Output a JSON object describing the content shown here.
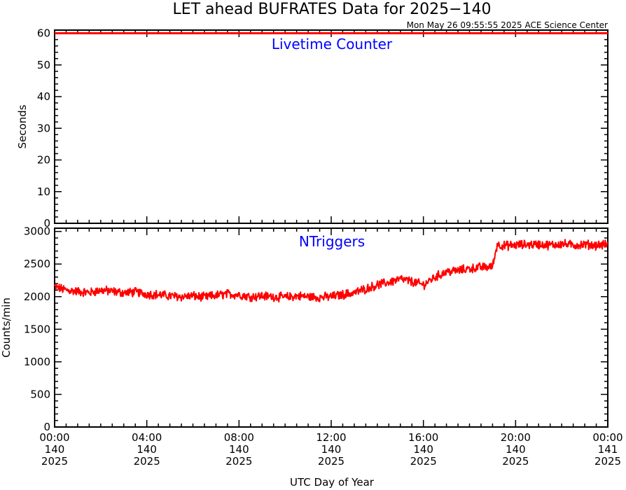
{
  "title": "LET ahead BUFRATES Data for 2025−140",
  "timestamp": "Mon May 26 09:55:55 2025 ACE Science Center",
  "xlabel": "UTC Day of Year",
  "colors": {
    "series": "#ff0000",
    "label": "#0000ff",
    "axes": "#000000"
  },
  "x_ticks": [
    {
      "hh": "00:00",
      "doy": "140",
      "year": "2025"
    },
    {
      "hh": "04:00",
      "doy": "140",
      "year": "2025"
    },
    {
      "hh": "08:00",
      "doy": "140",
      "year": "2025"
    },
    {
      "hh": "12:00",
      "doy": "140",
      "year": "2025"
    },
    {
      "hh": "16:00",
      "doy": "140",
      "year": "2025"
    },
    {
      "hh": "20:00",
      "doy": "140",
      "year": "2025"
    },
    {
      "hh": "00:00",
      "doy": "141",
      "year": "2025"
    }
  ],
  "chart_data": [
    {
      "type": "line",
      "label": "Livetime Counter",
      "ylabel": "Seconds",
      "xlim": [
        0,
        24
      ],
      "ylim": [
        0,
        61
      ],
      "yticks": [
        0,
        10,
        20,
        30,
        40,
        50,
        60
      ],
      "x_unit": "hours UTC",
      "x": [
        0,
        24
      ],
      "values": [
        60,
        60
      ]
    },
    {
      "type": "line",
      "label": "NTriggers",
      "ylabel": "Counts/min",
      "xlim": [
        0,
        24
      ],
      "ylim": [
        0,
        3050
      ],
      "yticks": [
        0,
        500,
        1000,
        1500,
        2000,
        2500,
        3000
      ],
      "x_unit": "hours UTC",
      "x": [
        0,
        0.5,
        1,
        1.5,
        2,
        2.5,
        3,
        3.5,
        4,
        4.5,
        5,
        5.5,
        6,
        6.5,
        7,
        7.5,
        8,
        8.5,
        9,
        9.5,
        10,
        10.5,
        11,
        11.5,
        12,
        12.5,
        13,
        13.5,
        14,
        14.5,
        15,
        15.5,
        16,
        16.5,
        17,
        17.5,
        18,
        18.5,
        19,
        19.2,
        19.5,
        20,
        20.5,
        21,
        21.5,
        22,
        22.5,
        23,
        23.5,
        24
      ],
      "values": [
        2150,
        2100,
        2080,
        2060,
        2100,
        2080,
        2060,
        2070,
        2040,
        2030,
        2010,
        2000,
        2010,
        1990,
        2020,
        2040,
        2030,
        2000,
        2010,
        2000,
        1990,
        2010,
        2000,
        1990,
        2000,
        2030,
        2060,
        2120,
        2180,
        2220,
        2270,
        2230,
        2180,
        2300,
        2380,
        2400,
        2430,
        2450,
        2460,
        2800,
        2780,
        2790,
        2800,
        2800,
        2790,
        2810,
        2790,
        2800,
        2790,
        2800
      ]
    }
  ]
}
